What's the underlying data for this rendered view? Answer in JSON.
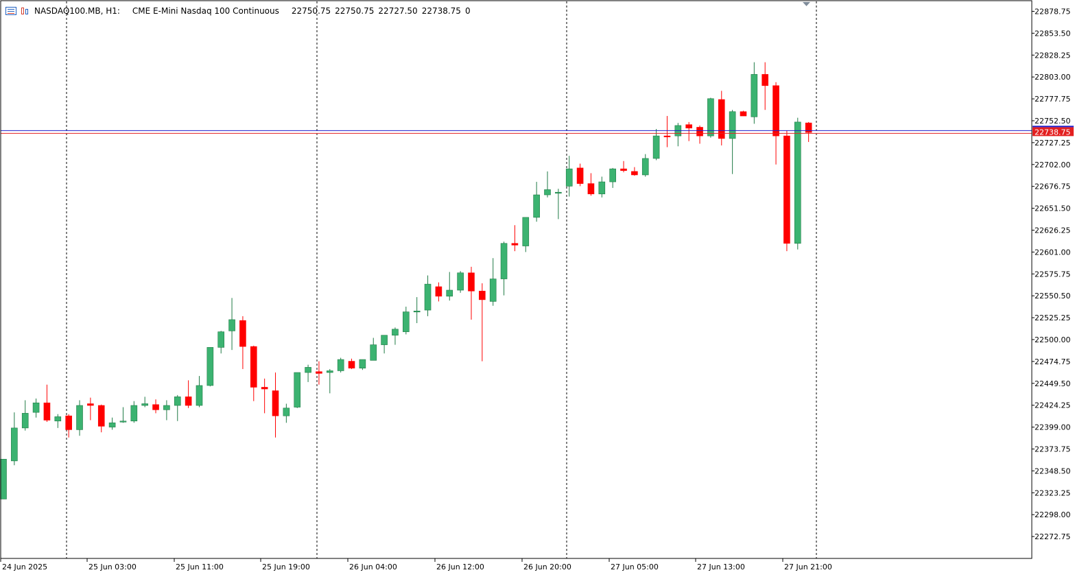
{
  "header": {
    "symbol": "NASDAQ100.MB, H1:",
    "description": "CME E-Mini Nasdaq 100 Continuous",
    "open": "22750.75",
    "high": "22750.75",
    "low": "22727.50",
    "close": "22738.75",
    "volume": "0"
  },
  "colors": {
    "bull": "#3cb371",
    "bear": "#ff0000",
    "bid_line": "#1c1ccc",
    "ask_line": "#e32020",
    "grid": "#000000",
    "frame": "#000000"
  },
  "chart_data": {
    "type": "candlestick",
    "symbol": "NASDAQ100.MB",
    "timeframe": "H1",
    "ylim": [
      22252,
      22890
    ],
    "y_ticks": [
      "22878.75",
      "22853.50",
      "22828.25",
      "22803.00",
      "22777.75",
      "22752.50",
      "22727.25",
      "22702.00",
      "22676.75",
      "22651.50",
      "22626.25",
      "22601.00",
      "22575.75",
      "22550.50",
      "22525.25",
      "22500.00",
      "22474.75",
      "22449.50",
      "22424.25",
      "22399.00",
      "22373.75",
      "22348.50",
      "22323.25",
      "22298.00",
      "22272.75"
    ],
    "x_labels": [
      "24 Jun 2025",
      "25 Jun 03:00",
      "25 Jun 11:00",
      "25 Jun 19:00",
      "26 Jun 04:00",
      "26 Jun 12:00",
      "26 Jun 20:00",
      "27 Jun 05:00",
      "27 Jun 13:00",
      "27 Jun 21:00"
    ],
    "current_price": "22738.75",
    "candles": [
      {
        "o": 22316,
        "h": 22362,
        "l": 22316,
        "c": 22362
      },
      {
        "o": 22360,
        "h": 22416,
        "l": 22355,
        "c": 22398
      },
      {
        "o": 22398,
        "h": 22430,
        "l": 22395,
        "c": 22415
      },
      {
        "o": 22416,
        "h": 22432,
        "l": 22410,
        "c": 22427
      },
      {
        "o": 22427,
        "h": 22448,
        "l": 22405,
        "c": 22407
      },
      {
        "o": 22406,
        "h": 22414,
        "l": 22398,
        "c": 22411
      },
      {
        "o": 22412,
        "h": 22414,
        "l": 22387,
        "c": 22396
      },
      {
        "o": 22396,
        "h": 22430,
        "l": 22389,
        "c": 22424
      },
      {
        "o": 22426,
        "h": 22433,
        "l": 22407,
        "c": 22424
      },
      {
        "o": 22424,
        "h": 22425,
        "l": 22393,
        "c": 22400
      },
      {
        "o": 22399,
        "h": 22410,
        "l": 22396,
        "c": 22404
      },
      {
        "o": 22406,
        "h": 22422,
        "l": 22404,
        "c": 22406
      },
      {
        "o": 22406,
        "h": 22429,
        "l": 22404,
        "c": 22424
      },
      {
        "o": 22424,
        "h": 22434,
        "l": 22422,
        "c": 22426
      },
      {
        "o": 22425,
        "h": 22431,
        "l": 22415,
        "c": 22419
      },
      {
        "o": 22419,
        "h": 22430,
        "l": 22407,
        "c": 22424
      },
      {
        "o": 22424,
        "h": 22436,
        "l": 22406,
        "c": 22434
      },
      {
        "o": 22434,
        "h": 22453,
        "l": 22421,
        "c": 22424
      },
      {
        "o": 22424,
        "h": 22458,
        "l": 22422,
        "c": 22447
      },
      {
        "o": 22447,
        "h": 22491,
        "l": 22446,
        "c": 22491
      },
      {
        "o": 22491,
        "h": 22510,
        "l": 22484,
        "c": 22509
      },
      {
        "o": 22510,
        "h": 22548,
        "l": 22488,
        "c": 22523
      },
      {
        "o": 22522,
        "h": 22527,
        "l": 22466,
        "c": 22492
      },
      {
        "o": 22492,
        "h": 22493,
        "l": 22429,
        "c": 22445
      },
      {
        "o": 22445,
        "h": 22455,
        "l": 22415,
        "c": 22443
      },
      {
        "o": 22441,
        "h": 22462,
        "l": 22387,
        "c": 22412
      },
      {
        "o": 22412,
        "h": 22426,
        "l": 22404,
        "c": 22421
      },
      {
        "o": 22422,
        "h": 22462,
        "l": 22421,
        "c": 22462
      },
      {
        "o": 22462,
        "h": 22471,
        "l": 22451,
        "c": 22468
      },
      {
        "o": 22463,
        "h": 22475,
        "l": 22448,
        "c": 22461
      },
      {
        "o": 22462,
        "h": 22466,
        "l": 22438,
        "c": 22464
      },
      {
        "o": 22464,
        "h": 22479,
        "l": 22462,
        "c": 22477
      },
      {
        "o": 22475,
        "h": 22478,
        "l": 22466,
        "c": 22467
      },
      {
        "o": 22467,
        "h": 22477,
        "l": 22465,
        "c": 22477
      },
      {
        "o": 22476,
        "h": 22502,
        "l": 22476,
        "c": 22494
      },
      {
        "o": 22494,
        "h": 22505,
        "l": 22484,
        "c": 22505
      },
      {
        "o": 22505,
        "h": 22514,
        "l": 22494,
        "c": 22512
      },
      {
        "o": 22509,
        "h": 22538,
        "l": 22506,
        "c": 22532
      },
      {
        "o": 22532,
        "h": 22549,
        "l": 22519,
        "c": 22533
      },
      {
        "o": 22534,
        "h": 22574,
        "l": 22527,
        "c": 22564
      },
      {
        "o": 22561,
        "h": 22566,
        "l": 22544,
        "c": 22550
      },
      {
        "o": 22550,
        "h": 22578,
        "l": 22545,
        "c": 22557
      },
      {
        "o": 22557,
        "h": 22579,
        "l": 22554,
        "c": 22577
      },
      {
        "o": 22577,
        "h": 22584,
        "l": 22523,
        "c": 22556
      },
      {
        "o": 22556,
        "h": 22565,
        "l": 22475,
        "c": 22546
      },
      {
        "o": 22544,
        "h": 22594,
        "l": 22539,
        "c": 22570
      },
      {
        "o": 22570,
        "h": 22613,
        "l": 22551,
        "c": 22611
      },
      {
        "o": 22611,
        "h": 22632,
        "l": 22602,
        "c": 22609
      },
      {
        "o": 22608,
        "h": 22640,
        "l": 22601,
        "c": 22641
      },
      {
        "o": 22641,
        "h": 22682,
        "l": 22636,
        "c": 22667
      },
      {
        "o": 22667,
        "h": 22694,
        "l": 22664,
        "c": 22673
      },
      {
        "o": 22669,
        "h": 22674,
        "l": 22639,
        "c": 22670
      },
      {
        "o": 22677,
        "h": 22712,
        "l": 22665,
        "c": 22697
      },
      {
        "o": 22698,
        "h": 22703,
        "l": 22677,
        "c": 22680
      },
      {
        "o": 22680,
        "h": 22692,
        "l": 22666,
        "c": 22668
      },
      {
        "o": 22668,
        "h": 22688,
        "l": 22664,
        "c": 22682
      },
      {
        "o": 22682,
        "h": 22698,
        "l": 22675,
        "c": 22697
      },
      {
        "o": 22697,
        "h": 22706,
        "l": 22693,
        "c": 22695
      },
      {
        "o": 22694,
        "h": 22699,
        "l": 22689,
        "c": 22690
      },
      {
        "o": 22690,
        "h": 22714,
        "l": 22688,
        "c": 22709
      },
      {
        "o": 22709,
        "h": 22743,
        "l": 22707,
        "c": 22735
      },
      {
        "o": 22735,
        "h": 22758,
        "l": 22722,
        "c": 22734
      },
      {
        "o": 22735,
        "h": 22750,
        "l": 22723,
        "c": 22747
      },
      {
        "o": 22748,
        "h": 22751,
        "l": 22729,
        "c": 22744
      },
      {
        "o": 22745,
        "h": 22747,
        "l": 22726,
        "c": 22735
      },
      {
        "o": 22735,
        "h": 22779,
        "l": 22733,
        "c": 22778
      },
      {
        "o": 22777,
        "h": 22787,
        "l": 22724,
        "c": 22732
      },
      {
        "o": 22732,
        "h": 22765,
        "l": 22691,
        "c": 22763
      },
      {
        "o": 22763,
        "h": 22764,
        "l": 22758,
        "c": 22758
      },
      {
        "o": 22757,
        "h": 22820,
        "l": 22749,
        "c": 22806
      },
      {
        "o": 22806,
        "h": 22820,
        "l": 22765,
        "c": 22793
      },
      {
        "o": 22793,
        "h": 22797,
        "l": 22702,
        "c": 22735
      },
      {
        "o": 22735,
        "h": 22741,
        "l": 22602,
        "c": 22611
      },
      {
        "o": 22611,
        "h": 22756,
        "l": 22604,
        "c": 22751
      },
      {
        "o": 22750,
        "h": 22751,
        "l": 22728,
        "c": 22739
      }
    ]
  }
}
